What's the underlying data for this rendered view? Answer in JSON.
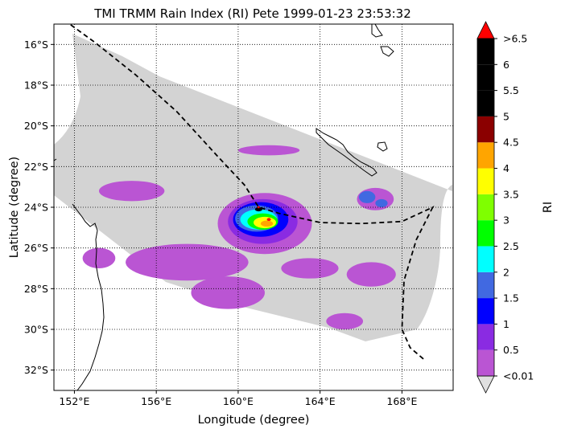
{
  "chart_data": {
    "type": "heatmap",
    "title": "TMI TRMM Rain Index (RI) Pete 1999-01-23 23:53:32",
    "xlabel": "Longitude (degree)",
    "ylabel": "Latitude (degree)",
    "xlim": [
      151.0,
      170.5
    ],
    "ylim": [
      -33.0,
      -15.0
    ],
    "x_ticks": [
      {
        "value": 152,
        "label": "152°E"
      },
      {
        "value": 156,
        "label": "156°E"
      },
      {
        "value": 160,
        "label": "160°E"
      },
      {
        "value": 164,
        "label": "164°E"
      },
      {
        "value": 168,
        "label": "168°E"
      }
    ],
    "y_ticks": [
      {
        "value": -16,
        "label": "16°S"
      },
      {
        "value": -18,
        "label": "18°S"
      },
      {
        "value": -20,
        "label": "20°S"
      },
      {
        "value": -22,
        "label": "22°S"
      },
      {
        "value": -24,
        "label": "24°S"
      },
      {
        "value": -26,
        "label": "26°S"
      },
      {
        "value": -28,
        "label": "28°S"
      },
      {
        "value": -30,
        "label": "30°S"
      },
      {
        "value": -32,
        "label": "32°S"
      }
    ],
    "grid": true,
    "grid_style": "dotted",
    "swath_color": "#d3d3d3",
    "colorbar": {
      "label": "RI",
      "tick_labels": [
        "<0.01",
        "0.5",
        "1",
        "1.5",
        "2",
        "2.5",
        "3",
        "3.5",
        "4",
        "4.5",
        "5",
        "5.5",
        "6",
        ">6.5"
      ],
      "under_color": "#e0e0e0",
      "over_color": "#ff0000",
      "colors": [
        "#ba55d3",
        "#8a2be2",
        "#0000ff",
        "#4169e1",
        "#00ffff",
        "#00ff00",
        "#7fff00",
        "#ffff00",
        "#ffa500",
        "#8b0000",
        "#000000",
        "#000000"
      ]
    },
    "track": [
      [
        151.5,
        -14.8
      ],
      [
        153.0,
        -15.9
      ],
      [
        155.0,
        -17.5
      ],
      [
        157.0,
        -19.3
      ],
      [
        159.0,
        -21.5
      ],
      [
        160.3,
        -22.9
      ],
      [
        161.0,
        -24.0
      ],
      [
        162.0,
        -24.3
      ],
      [
        164.0,
        -24.75
      ],
      [
        166.0,
        -24.8
      ],
      [
        168.0,
        -24.7
      ],
      [
        169.5,
        -24.0
      ],
      [
        168.7,
        -25.6
      ],
      [
        168.1,
        -27.6
      ],
      [
        168.0,
        -30.0
      ],
      [
        168.4,
        -30.9
      ],
      [
        169.1,
        -31.5
      ]
    ],
    "storm_center": [
      160.95,
      -24.0
    ],
    "rain_features": [
      {
        "lon": 161.3,
        "lat": -24.8,
        "rx": 2.3,
        "ry": 1.5,
        "ri": 0.25
      },
      {
        "lon": 161.2,
        "lat": -24.7,
        "rx": 1.7,
        "ry": 1.1,
        "ri": 0.75
      },
      {
        "lon": 161.1,
        "lat": -24.6,
        "rx": 1.35,
        "ry": 0.85,
        "ri": 1.25
      },
      {
        "lon": 160.9,
        "lat": -24.55,
        "rx": 1.05,
        "ry": 0.65,
        "ri": 1.75
      },
      {
        "lon": 161.0,
        "lat": -24.6,
        "rx": 0.9,
        "ry": 0.5,
        "ri": 2.25
      },
      {
        "lon": 161.2,
        "lat": -24.7,
        "rx": 0.75,
        "ry": 0.4,
        "ri": 2.75
      },
      {
        "lon": 161.3,
        "lat": -24.75,
        "rx": 0.55,
        "ry": 0.28,
        "ri": 3.75
      },
      {
        "lon": 161.4,
        "lat": -24.8,
        "rx": 0.3,
        "ry": 0.15,
        "ri": 4.25
      },
      {
        "lon": 161.0,
        "lat": -24.1,
        "rx": 0.18,
        "ry": 0.1,
        "ri": 5.25
      },
      {
        "lon": 161.5,
        "lat": -24.6,
        "rx": 0.1,
        "ry": 0.07,
        "ri": 7.0
      },
      {
        "lon": 161.0,
        "lat": -24.0,
        "rx": 0.07,
        "ry": 0.05,
        "ri": 7.0
      },
      {
        "lon": 166.7,
        "lat": -23.6,
        "rx": 0.9,
        "ry": 0.55,
        "ri": 0.25
      },
      {
        "lon": 166.3,
        "lat": -23.5,
        "rx": 0.4,
        "ry": 0.3,
        "ri": 1.75
      },
      {
        "lon": 167.0,
        "lat": -23.8,
        "rx": 0.3,
        "ry": 0.2,
        "ri": 1.75
      },
      {
        "lon": 161.5,
        "lat": -21.2,
        "rx": 1.5,
        "ry": 0.25,
        "ri": 0.25
      },
      {
        "lon": 157.5,
        "lat": -26.7,
        "rx": 3.0,
        "ry": 0.9,
        "ri": 0.25
      },
      {
        "lon": 159.5,
        "lat": -28.2,
        "rx": 1.8,
        "ry": 0.8,
        "ri": 0.25
      },
      {
        "lon": 154.8,
        "lat": -23.2,
        "rx": 1.6,
        "ry": 0.5,
        "ri": 0.25
      },
      {
        "lon": 163.5,
        "lat": -27.0,
        "rx": 1.4,
        "ry": 0.5,
        "ri": 0.25
      },
      {
        "lon": 166.5,
        "lat": -27.3,
        "rx": 1.2,
        "ry": 0.6,
        "ri": 0.25
      },
      {
        "lon": 153.2,
        "lat": -26.5,
        "rx": 0.8,
        "ry": 0.5,
        "ri": 0.25
      },
      {
        "lon": 165.2,
        "lat": -29.6,
        "rx": 0.9,
        "ry": 0.4,
        "ri": 0.25
      }
    ]
  }
}
